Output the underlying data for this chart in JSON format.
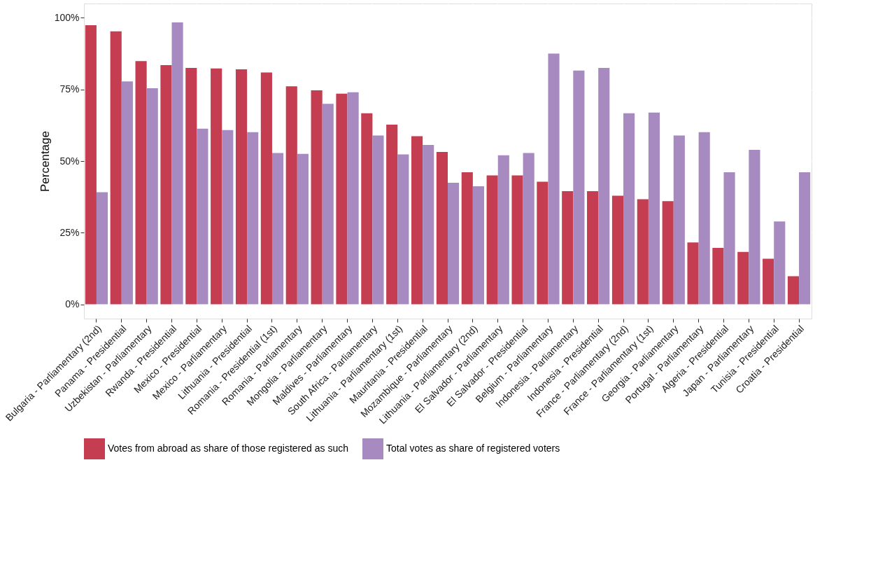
{
  "chart_data": {
    "type": "bar",
    "ylabel": "Percentage",
    "categories": [
      "Bulgaria - Parliamentary (2nd)",
      "Panama - Presidential",
      "Uzbekistan - Parliamentary",
      "Rwanda - Presidential",
      "Mexico - Presidential",
      "Mexico - Parliamentary",
      "Lithuania - Presidential",
      "Romania - Presidential (1st)",
      "Romania - Parliamentary",
      "Mongolia - Parliamentary",
      "Maldives - Parliamentary",
      "South Africa - Parliamentary",
      "Lithuania - Parliamentary (1st)",
      "Mauritania - Presidential",
      "Mozambique - Parliamentary",
      "Lithuania - Parliamentary (2nd)",
      "El Salvador - Parliamentary",
      "El Salvador - Presidential",
      "Belgium - Parliamentary",
      "Indonesia - Parliamentary",
      "Indonesia - Presidential",
      "France - Parliamentary (2nd)",
      "France - Parliamentary (1st)",
      "Georgia - Parliamentary",
      "Portugal - Parliamentary",
      "Algeria - Presidential",
      "Japan - Parliamentary",
      "Tunisia - Presidential",
      "Croatia - Presidential"
    ],
    "series": [
      {
        "name": "Votes from abroad as share of those registered as such",
        "color": "#c43d50",
        "values": [
          97.4,
          95.3,
          84.9,
          83.5,
          82.5,
          82.3,
          82.0,
          80.9,
          76.1,
          74.7,
          73.5,
          66.7,
          62.7,
          58.7,
          53.2,
          46.1,
          45.0,
          45.0,
          42.8,
          39.5,
          39.5,
          37.9,
          36.7,
          36.0,
          21.6,
          19.7,
          18.3,
          15.9,
          9.8
        ]
      },
      {
        "name": "Total votes as share of registered voters",
        "color": "#a78bc0",
        "values": [
          39.1,
          77.8,
          75.4,
          98.4,
          61.3,
          60.8,
          60.1,
          52.8,
          52.5,
          70.0,
          74.0,
          58.9,
          52.3,
          55.6,
          42.4,
          41.2,
          52.0,
          52.8,
          87.5,
          81.6,
          82.5,
          66.7,
          66.9,
          58.9,
          60.1,
          46.1,
          53.9,
          28.9,
          46.1
        ]
      }
    ],
    "ylim": [
      -5,
      105
    ],
    "yticks": [
      {
        "value": 0,
        "label": "0%"
      },
      {
        "value": 25,
        "label": "25%"
      },
      {
        "value": 50,
        "label": "50%"
      },
      {
        "value": 75,
        "label": "75%"
      },
      {
        "value": 100,
        "label": "100%"
      }
    ],
    "grid": true,
    "legend": "bottom"
  }
}
